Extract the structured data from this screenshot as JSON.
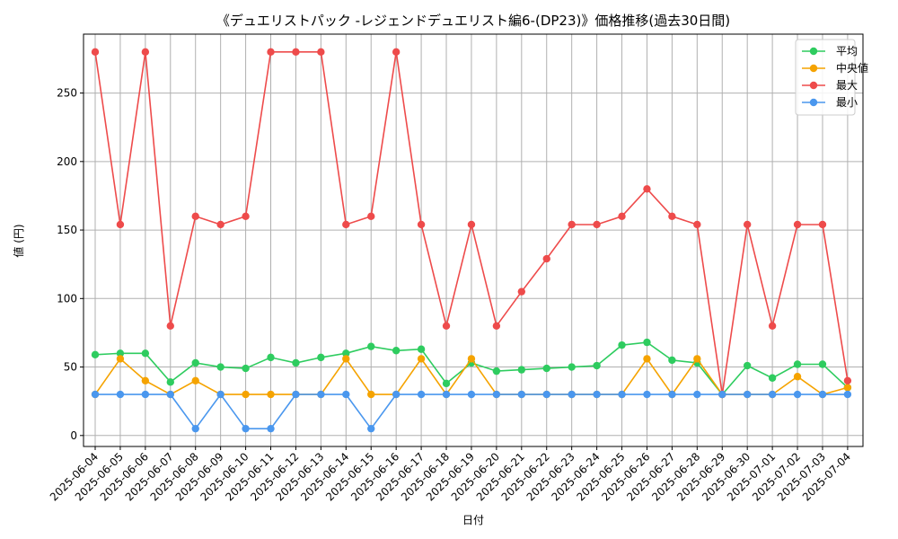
{
  "chart_data": {
    "type": "line",
    "title": "《デュエリストパック -レジェンドデュエリスト編6-(DP23)》価格推移(過去30日間)",
    "xlabel": "日付",
    "ylabel": "値 (円)",
    "ylim": [
      -8,
      293
    ],
    "yticks": [
      0,
      50,
      100,
      150,
      200,
      250
    ],
    "grid": true,
    "legend_position": "top-right",
    "categories": [
      "2025-06-04",
      "2025-06-05",
      "2025-06-06",
      "2025-06-07",
      "2025-06-08",
      "2025-06-09",
      "2025-06-10",
      "2025-06-11",
      "2025-06-12",
      "2025-06-13",
      "2025-06-14",
      "2025-06-15",
      "2025-06-16",
      "2025-06-17",
      "2025-06-18",
      "2025-06-19",
      "2025-06-20",
      "2025-06-21",
      "2025-06-22",
      "2025-06-23",
      "2025-06-24",
      "2025-06-25",
      "2025-06-26",
      "2025-06-27",
      "2025-06-28",
      "2025-06-29",
      "2025-06-30",
      "2025-07-01",
      "2025-07-02",
      "2025-07-03",
      "2025-07-04"
    ],
    "series": [
      {
        "name": "平均",
        "color": "#2ecc5f",
        "values": [
          59,
          60,
          60,
          39,
          53,
          50,
          49,
          57,
          53,
          57,
          60,
          65,
          62,
          63,
          38,
          53,
          47,
          48,
          49,
          50,
          51,
          66,
          68,
          55,
          53,
          30,
          51,
          42,
          52,
          52,
          35
        ]
      },
      {
        "name": "中央値",
        "color": "#f5a300",
        "values": [
          30,
          56,
          40,
          30,
          40,
          30,
          30,
          30,
          30,
          30,
          56,
          30,
          30,
          56,
          30,
          56,
          30,
          30,
          30,
          30,
          30,
          30,
          56,
          30,
          56,
          30,
          30,
          30,
          43,
          30,
          35
        ]
      },
      {
        "name": "最大",
        "color": "#ee4b4b",
        "values": [
          280,
          154,
          280,
          80,
          160,
          154,
          160,
          280,
          280,
          280,
          154,
          160,
          280,
          154,
          80,
          154,
          80,
          105,
          129,
          154,
          154,
          160,
          180,
          160,
          154,
          30,
          154,
          80,
          154,
          154,
          40
        ]
      },
      {
        "name": "最小",
        "color": "#4a97ee",
        "values": [
          30,
          30,
          30,
          30,
          5,
          30,
          5,
          5,
          30,
          30,
          30,
          5,
          30,
          30,
          30,
          30,
          30,
          30,
          30,
          30,
          30,
          30,
          30,
          30,
          30,
          30,
          30,
          30,
          30,
          30,
          30
        ]
      }
    ]
  }
}
